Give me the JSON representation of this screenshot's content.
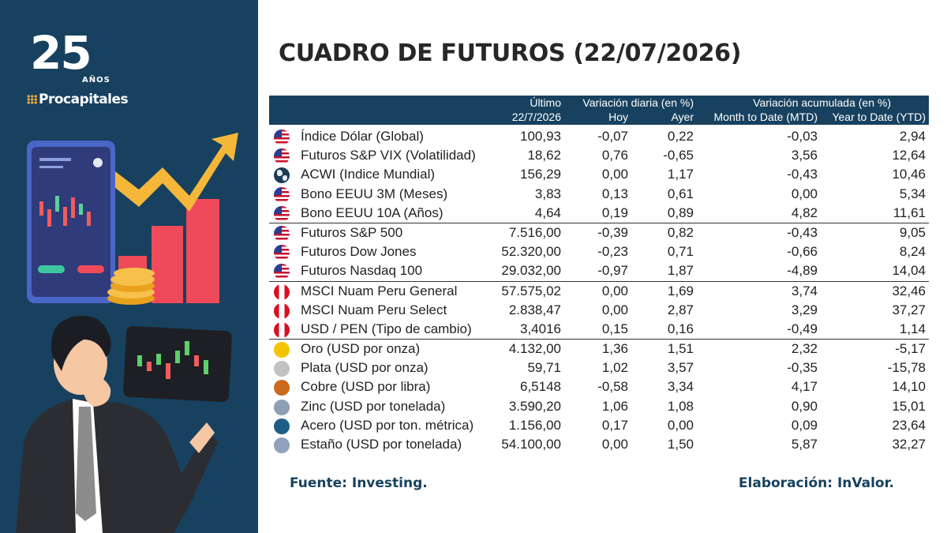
{
  "brand": {
    "years": "25",
    "anos": "AÑOS",
    "name": "Procapitales"
  },
  "title": "CUADRO DE FUTUROS (22/07/2026)",
  "header": {
    "ultimo": "Último",
    "fecha": "22/7/2026",
    "var_diaria": "Variación diaria (en %)",
    "hoy": "Hoy",
    "ayer": "Ayer",
    "var_acum": "Variación acumulada (en %)",
    "mtd": "Month to Date (MTD)",
    "ytd": "Year to Date (YTD)"
  },
  "rows": [
    {
      "icon": "us",
      "name": "Índice Dólar (Global)",
      "ultimo": "100,93",
      "hoy": "-0,07",
      "ayer": "0,22",
      "mtd": "-0,03",
      "ytd": "2,94"
    },
    {
      "icon": "us",
      "name": "Futuros S&P VIX (Volatilidad)",
      "ultimo": "18,62",
      "hoy": "0,76",
      "ayer": "-0,65",
      "mtd": "3,56",
      "ytd": "12,64"
    },
    {
      "icon": "globe",
      "name": "ACWI (Indice Mundial)",
      "ultimo": "156,29",
      "hoy": "0,00",
      "ayer": "1,17",
      "mtd": "-0,43",
      "ytd": "10,46"
    },
    {
      "icon": "us",
      "name": "Bono EEUU 3M (Meses)",
      "ultimo": "3,83",
      "hoy": "0,13",
      "ayer": "0,61",
      "mtd": "0,00",
      "ytd": "5,34"
    },
    {
      "icon": "us",
      "name": "Bono EEUU 10A (Años)",
      "ultimo": "4,64",
      "hoy": "0,19",
      "ayer": "0,89",
      "mtd": "4,82",
      "ytd": "11,61"
    },
    {
      "icon": "us",
      "name": "Futuros S&P 500",
      "ultimo": "7.516,00",
      "hoy": "-0,39",
      "ayer": "0,82",
      "mtd": "-0,43",
      "ytd": "9,05",
      "sep": true
    },
    {
      "icon": "us",
      "name": "Futuros Dow Jones",
      "ultimo": "52.320,00",
      "hoy": "-0,23",
      "ayer": "0,71",
      "mtd": "-0,66",
      "ytd": "8,24"
    },
    {
      "icon": "us",
      "name": "Futuros Nasdaq 100",
      "ultimo": "29.032,00",
      "hoy": "-0,97",
      "ayer": "1,87",
      "mtd": "-4,89",
      "ytd": "14,04"
    },
    {
      "icon": "pe",
      "name": "MSCI Nuam Peru General",
      "ultimo": "57.575,02",
      "hoy": "0,00",
      "ayer": "1,69",
      "mtd": "3,74",
      "ytd": "32,46",
      "sep": true
    },
    {
      "icon": "pe",
      "name": "MSCI Nuam Peru Select",
      "ultimo": "2.838,47",
      "hoy": "0,00",
      "ayer": "2,87",
      "mtd": "3,29",
      "ytd": "37,27"
    },
    {
      "icon": "pe",
      "name": "USD / PEN (Tipo de cambio)",
      "ultimo": "3,4016",
      "hoy": "0,15",
      "ayer": "0,16",
      "mtd": "-0,49",
      "ytd": "1,14"
    },
    {
      "icon": "dot",
      "color": "#f5c400",
      "name": "Oro (USD por onza)",
      "ultimo": "4.132,00",
      "hoy": "1,36",
      "ayer": "1,51",
      "mtd": "2,32",
      "ytd": "-5,17",
      "sep": true
    },
    {
      "icon": "dot",
      "color": "#c2c2c2",
      "name": "Plata (USD por onza)",
      "ultimo": "59,71",
      "hoy": "1,02",
      "ayer": "3,57",
      "mtd": "-0,35",
      "ytd": "-15,78"
    },
    {
      "icon": "dot",
      "color": "#c96a1e",
      "name": "Cobre (USD por libra)",
      "ultimo": "6,5148",
      "hoy": "-0,58",
      "ayer": "3,34",
      "mtd": "4,17",
      "ytd": "14,10"
    },
    {
      "icon": "dot",
      "color": "#8c9fb5",
      "name": "Zinc (USD por tonelada)",
      "ultimo": "3.590,20",
      "hoy": "1,06",
      "ayer": "1,08",
      "mtd": "0,90",
      "ytd": "15,01"
    },
    {
      "icon": "dot",
      "color": "#1d5e86",
      "name": "Acero (USD por ton. métrica)",
      "ultimo": "1.156,00",
      "hoy": "0,17",
      "ayer": "0,00",
      "mtd": "0,09",
      "ytd": "23,64"
    },
    {
      "icon": "dot",
      "color": "#8fa1bb",
      "name": "Estaño (USD por tonelada)",
      "ultimo": "54.100,00",
      "hoy": "0,00",
      "ayer": "1,50",
      "mtd": "5,87",
      "ytd": "32,27"
    }
  ],
  "footer": {
    "source": "Fuente: Investing.",
    "credit": "Elaboración: InValor."
  }
}
